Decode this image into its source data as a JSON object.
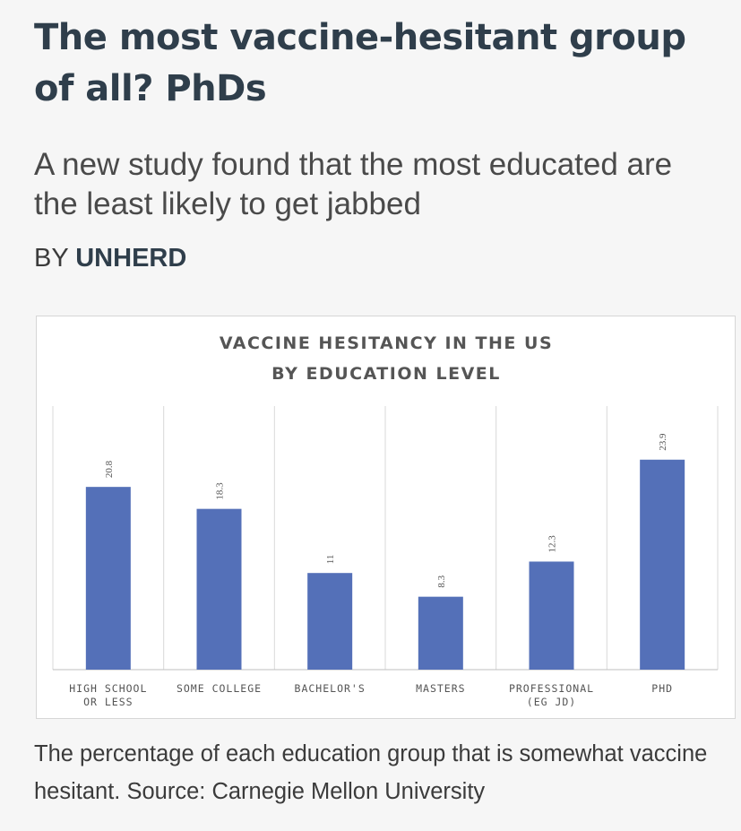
{
  "article": {
    "headline": "The most vaccine-hesitant group of all? PhDs",
    "subheadline": "A new study found that the most educated are the least likely to get jabbed",
    "byline_prefix": "BY",
    "byline_author": "UNHERD",
    "caption": "The percentage of each education group that is somewhat vaccine hesitant. Source: Carnegie Mellon University"
  },
  "colors": {
    "bar": "#5470b8",
    "gridline": "#d9d9d9",
    "text": "#2f3e4b"
  },
  "chart_data": {
    "type": "bar",
    "title_lines": [
      "VACCINE HESITANCY IN THE US",
      "BY EDUCATION LEVEL"
    ],
    "categories": [
      [
        "HIGH SCHOOL",
        "OR LESS"
      ],
      [
        "SOME COLLEGE"
      ],
      [
        "BACHELOR'S"
      ],
      [
        "MASTERS"
      ],
      [
        "PROFESSIONAL",
        "(EG JD)"
      ],
      [
        "PHD"
      ]
    ],
    "values": [
      20.8,
      18.3,
      11,
      8.3,
      12.3,
      23.9
    ],
    "value_labels": [
      "20.8",
      "18.3",
      "11",
      "8.3",
      "12.3",
      "23.9"
    ],
    "ylim": [
      0,
      30
    ],
    "xlabel": "",
    "ylabel": "",
    "grid": "vertical-separators",
    "legend": "none"
  }
}
